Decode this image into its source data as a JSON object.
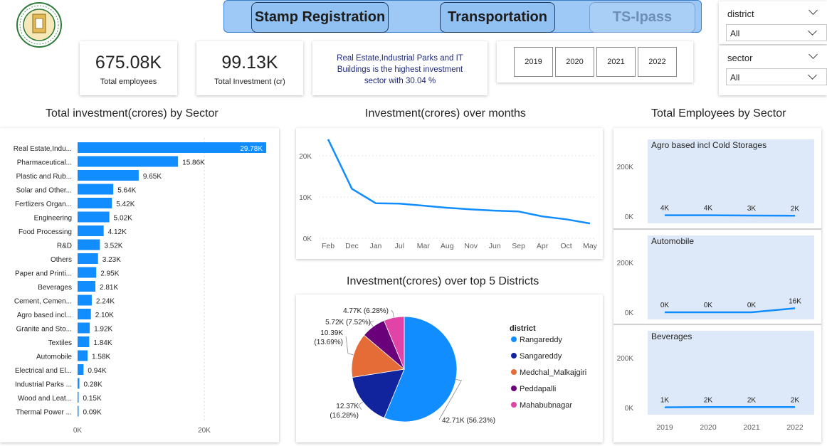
{
  "nav": {
    "tabs": [
      "Stamp Registration",
      "Transportation",
      "TS-Ipass"
    ]
  },
  "kpis": {
    "employees_value": "675.08K",
    "employees_label": "Total employees",
    "investment_value": "99.13K",
    "investment_label": "Total Investment (cr)",
    "insight": "Real Estate,Industrial Parks and IT Buildings is the highest investment sector with 30.04 %"
  },
  "years": [
    "2019",
    "2020",
    "2021",
    "2022"
  ],
  "slicers": {
    "district": {
      "title": "district",
      "value": "All"
    },
    "sector": {
      "title": "sector",
      "value": "All"
    }
  },
  "colors": {
    "primary": "#118DFF",
    "navy": "#12239E",
    "orange": "#E66C37",
    "purple": "#6B007B",
    "pink": "#E044A7",
    "panel": "#dde9f9"
  },
  "chart_data": [
    {
      "type": "bar",
      "title": "Total investment(crores) by Sector",
      "orientation": "horizontal",
      "categories": [
        "Real Estate,Indu...",
        "Pharmaceutical...",
        "Plastic and Rub...",
        "Solar and Other...",
        "Fertlizers Organ...",
        "Engineering",
        "Food Processing",
        "R&D",
        "Others",
        "Paper and Printi...",
        "Beverages",
        "Cement, Cemen...",
        "Agro based incl...",
        "Granite and Sto...",
        "Textiles",
        "Automobile",
        "Electrical and El...",
        "Industrial Parks ...",
        "Wood and Leat...",
        "Thermal Power ..."
      ],
      "values": [
        29780,
        15860,
        9650,
        5640,
        5420,
        5020,
        4120,
        3520,
        3230,
        2950,
        2810,
        2240,
        2100,
        1920,
        1840,
        1580,
        940,
        280,
        150,
        90
      ],
      "data_labels": [
        "29.78K",
        "15.86K",
        "9.65K",
        "5.64K",
        "5.42K",
        "5.02K",
        "4.12K",
        "3.52K",
        "3.23K",
        "2.95K",
        "2.81K",
        "2.24K",
        "2.10K",
        "1.92K",
        "1.84K",
        "1.58K",
        "0.94K",
        "0.28K",
        "0.15K",
        "0.09K"
      ],
      "x_ticks": [
        "0K",
        "20K"
      ],
      "xlim": [
        0,
        30000
      ]
    },
    {
      "type": "line",
      "title": "Investment(crores) over months",
      "x": [
        "Feb",
        "Dec",
        "Jan",
        "Jul",
        "Mar",
        "Aug",
        "Nov",
        "Jun",
        "Sep",
        "Apr",
        "Oct",
        "May"
      ],
      "values": [
        24000,
        12000,
        8500,
        8400,
        7900,
        7400,
        7000,
        6700,
        6500,
        5300,
        4600,
        3600
      ],
      "y_ticks": [
        "0K",
        "10K",
        "20K"
      ],
      "ylim": [
        0,
        25000
      ]
    },
    {
      "type": "pie",
      "title": "Investment(crores) over top 5 Districts",
      "legend_title": "district",
      "slices": [
        {
          "name": "Rangareddy",
          "value": 42710,
          "label": "42.71K (56.23%)"
        },
        {
          "name": "Sangareddy",
          "value": 12370,
          "label": "12.37K\n(16.28%)"
        },
        {
          "name": "Medchal_Malkajgiri",
          "value": 10390,
          "label": "10.39K\n(13.69%)"
        },
        {
          "name": "Peddapalli",
          "value": 5720,
          "label": "5.72K (7.52%)"
        },
        {
          "name": "Mahabubnagar",
          "value": 4770,
          "label": "4.77K (6.28%)"
        }
      ]
    },
    {
      "type": "line",
      "title": "Total Employees by Sector",
      "x": [
        "2019",
        "2020",
        "2021",
        "2022"
      ],
      "y_ticks": [
        "0K",
        "200K"
      ],
      "ylim": [
        0,
        280000
      ],
      "panels": [
        {
          "name": "Agro based incl Cold Storages",
          "values": [
            4000,
            4000,
            3000,
            2000
          ],
          "labels": [
            "4K",
            "4K",
            "3K",
            "2K"
          ]
        },
        {
          "name": "Automobile",
          "values": [
            0,
            0,
            0,
            16000
          ],
          "labels": [
            "0K",
            "0K",
            "0K",
            "16K"
          ]
        },
        {
          "name": "Beverages",
          "values": [
            1000,
            2000,
            2000,
            2000
          ],
          "labels": [
            "1K",
            "2K",
            "2K",
            "2K"
          ]
        }
      ]
    }
  ]
}
